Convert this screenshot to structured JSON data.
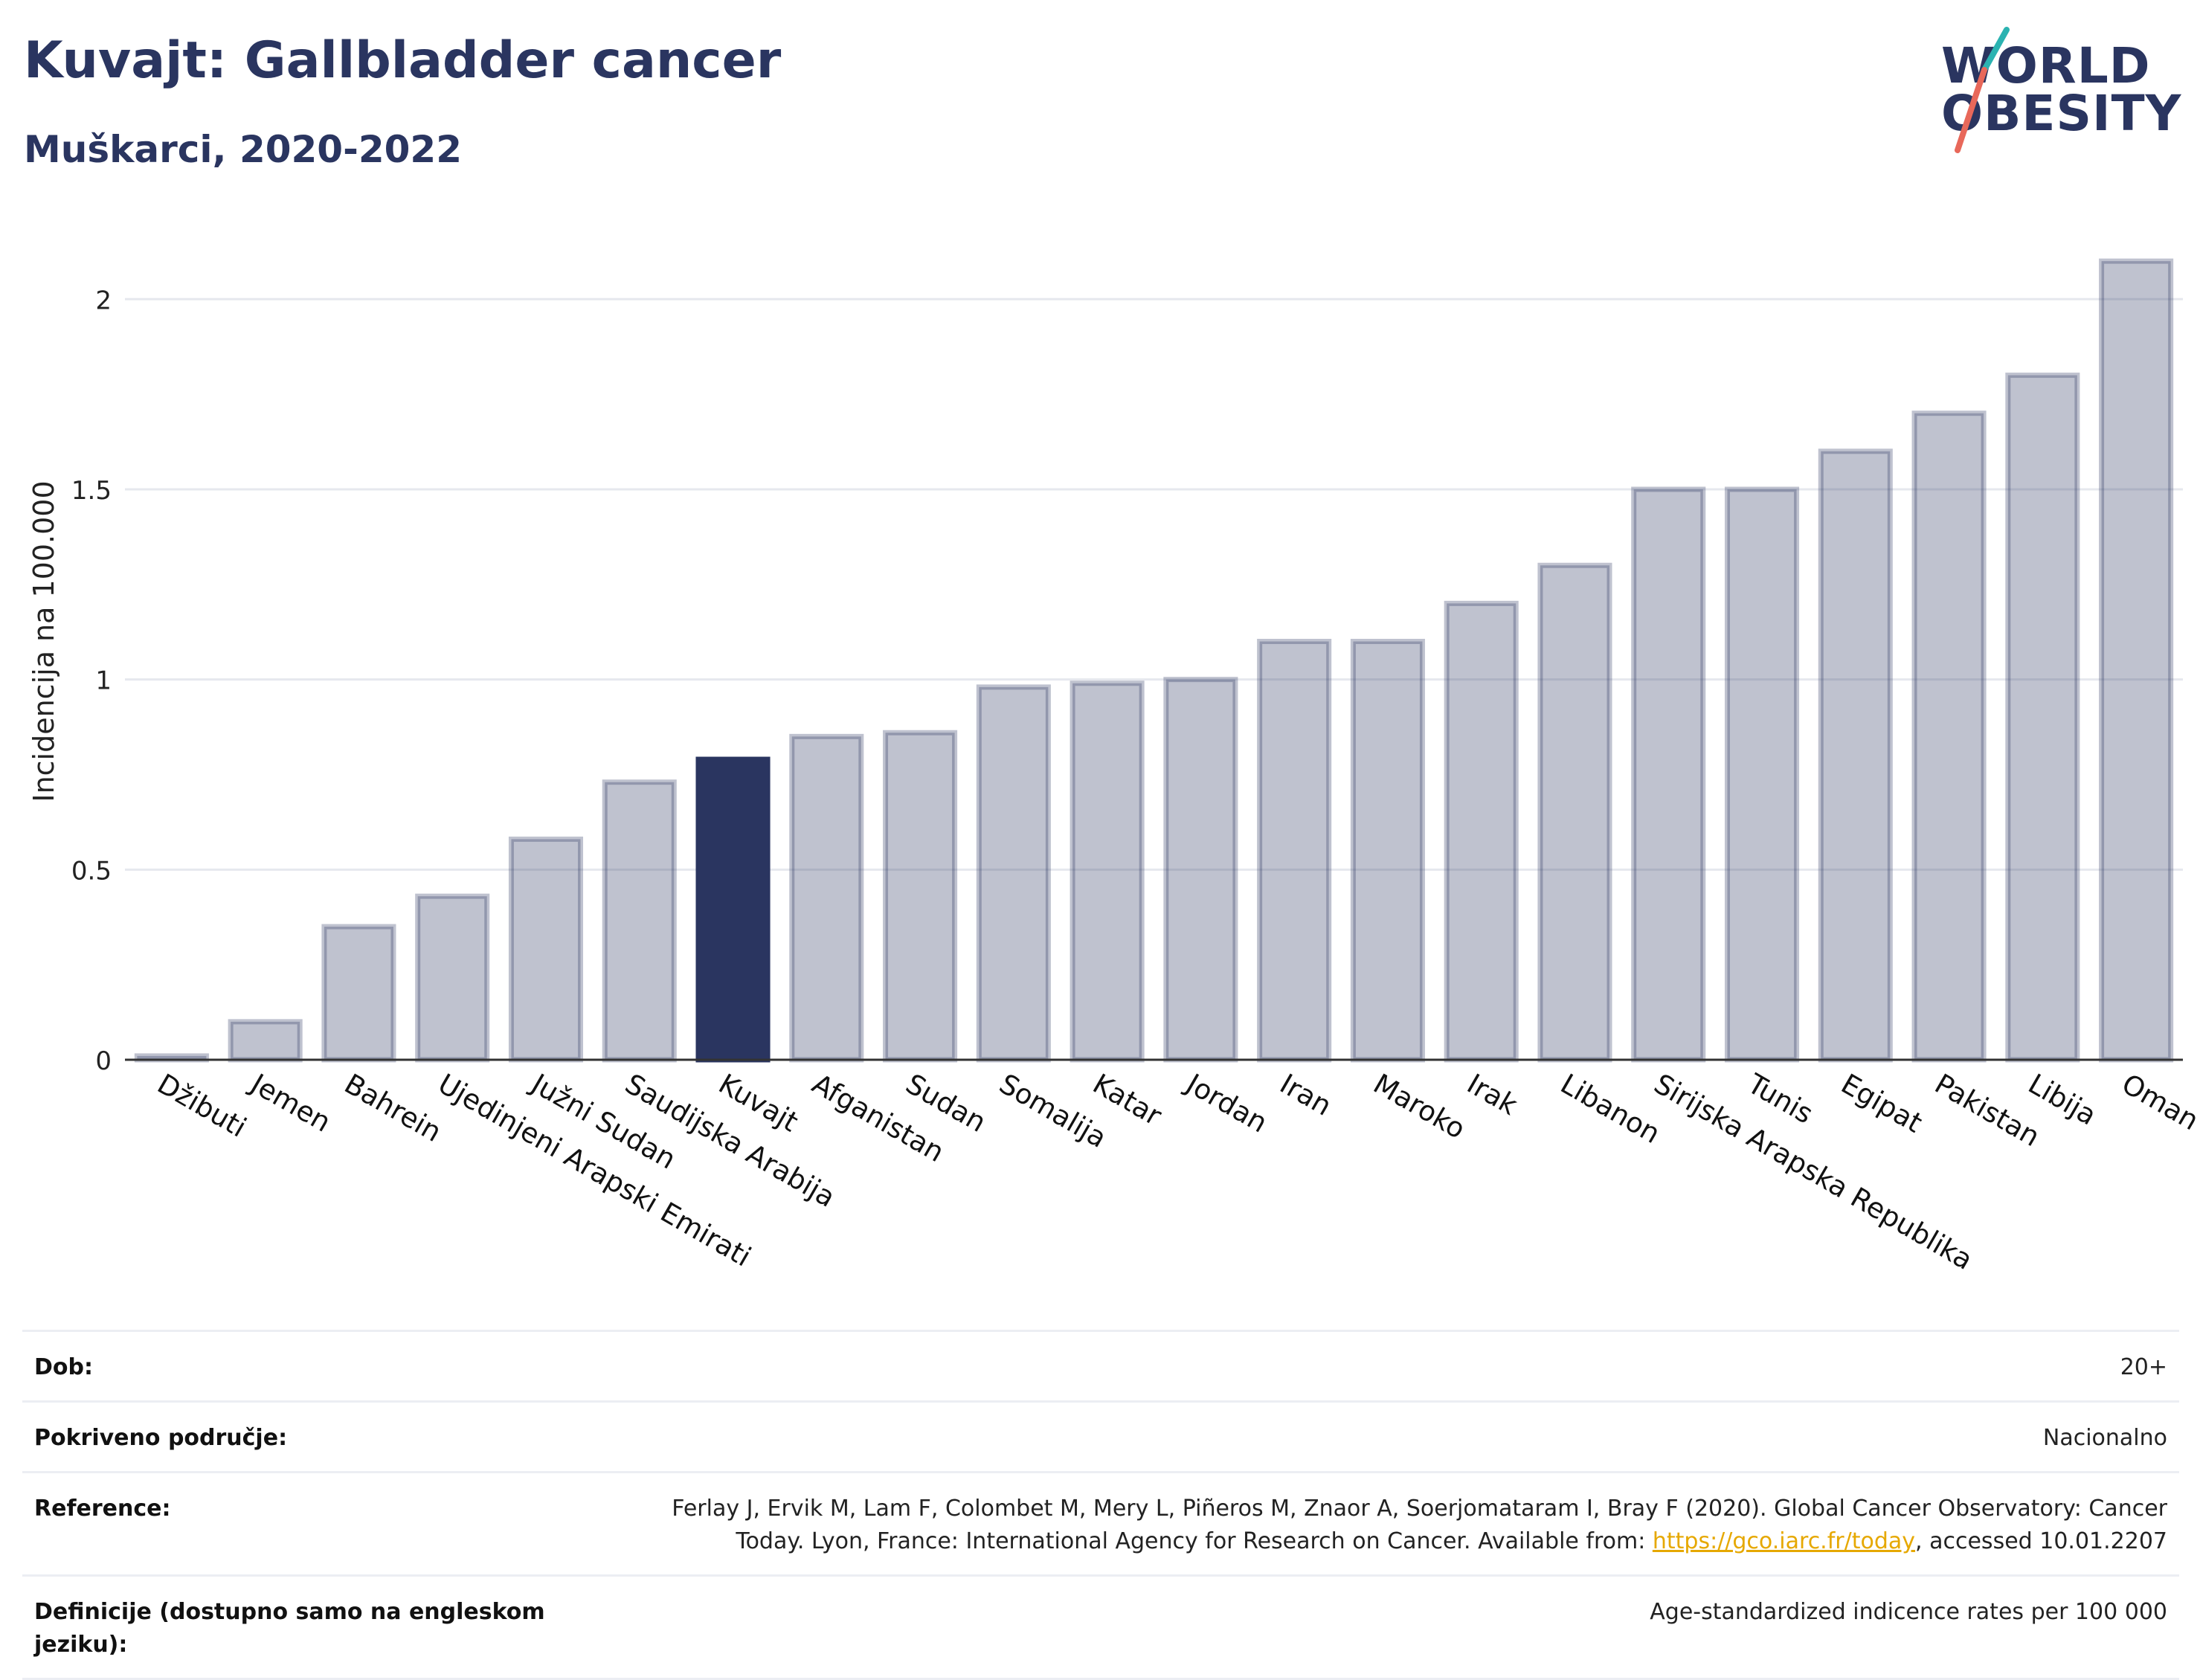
{
  "header": {
    "title": "Kuvajt: Gallbladder cancer",
    "subtitle": "Muškarci, 2020-2022"
  },
  "logo": {
    "line1": "WORLD",
    "line2": "OBESITY",
    "colors": {
      "text": "#2a3560",
      "slash_top": "#2bb3b1",
      "slash_bottom": "#e8685a"
    }
  },
  "chart_data": {
    "type": "bar",
    "ylabel": "Incidencija na 100.000",
    "ylim": [
      0,
      2.2
    ],
    "yticks": [
      0,
      0.5,
      1,
      1.5,
      2
    ],
    "ytick_labels": [
      "0",
      "0.5",
      "1",
      "1.5",
      "2"
    ],
    "grid": true,
    "highlight": "Kuvajt",
    "colors": {
      "bar": "#2a3560",
      "highlight": "#2a3560"
    },
    "categories": [
      "Džibuti",
      "Jemen",
      "Bahrein",
      "Ujedinjeni Arapski Emirati",
      "Južni Sudan",
      "Saudijska Arabija",
      "Kuvajt",
      "Afganistan",
      "Sudan",
      "Somalija",
      "Katar",
      "Jordan",
      "Iran",
      "Maroko",
      "Irak",
      "Libanon",
      "Sirijska Arapska Republika",
      "Tunis",
      "Egipat",
      "Pakistan",
      "Libija",
      "Oman"
    ],
    "values": [
      0.01,
      0.1,
      0.35,
      0.43,
      0.58,
      0.73,
      0.79,
      0.85,
      0.86,
      0.98,
      0.99,
      1.0,
      1.1,
      1.1,
      1.2,
      1.3,
      1.5,
      1.5,
      1.6,
      1.7,
      1.8,
      2.1
    ]
  },
  "meta": {
    "rows": [
      {
        "label": "Dob:",
        "value": "20+"
      },
      {
        "label": "Pokriveno područje:",
        "value": "Nacionalno"
      },
      {
        "label": "Reference:",
        "value_line1": "Ferlay J, Ervik M, Lam F, Colombet M, Mery L, Piñeros M, Znaor A, Soerjomataram I, Bray F (2020). Global Cancer Observatory: Cancer",
        "value_line2_pre": "Today. Lyon, France: International Agency for Research on Cancer. Available from: ",
        "link": "https://gco.iarc.fr/today",
        "value_line2_post": ", accessed 10.01.2207"
      },
      {
        "label": "Definicije (dostupno samo na engleskom jeziku):",
        "value": "Age-standardized indicence rates per 100 000"
      }
    ]
  }
}
